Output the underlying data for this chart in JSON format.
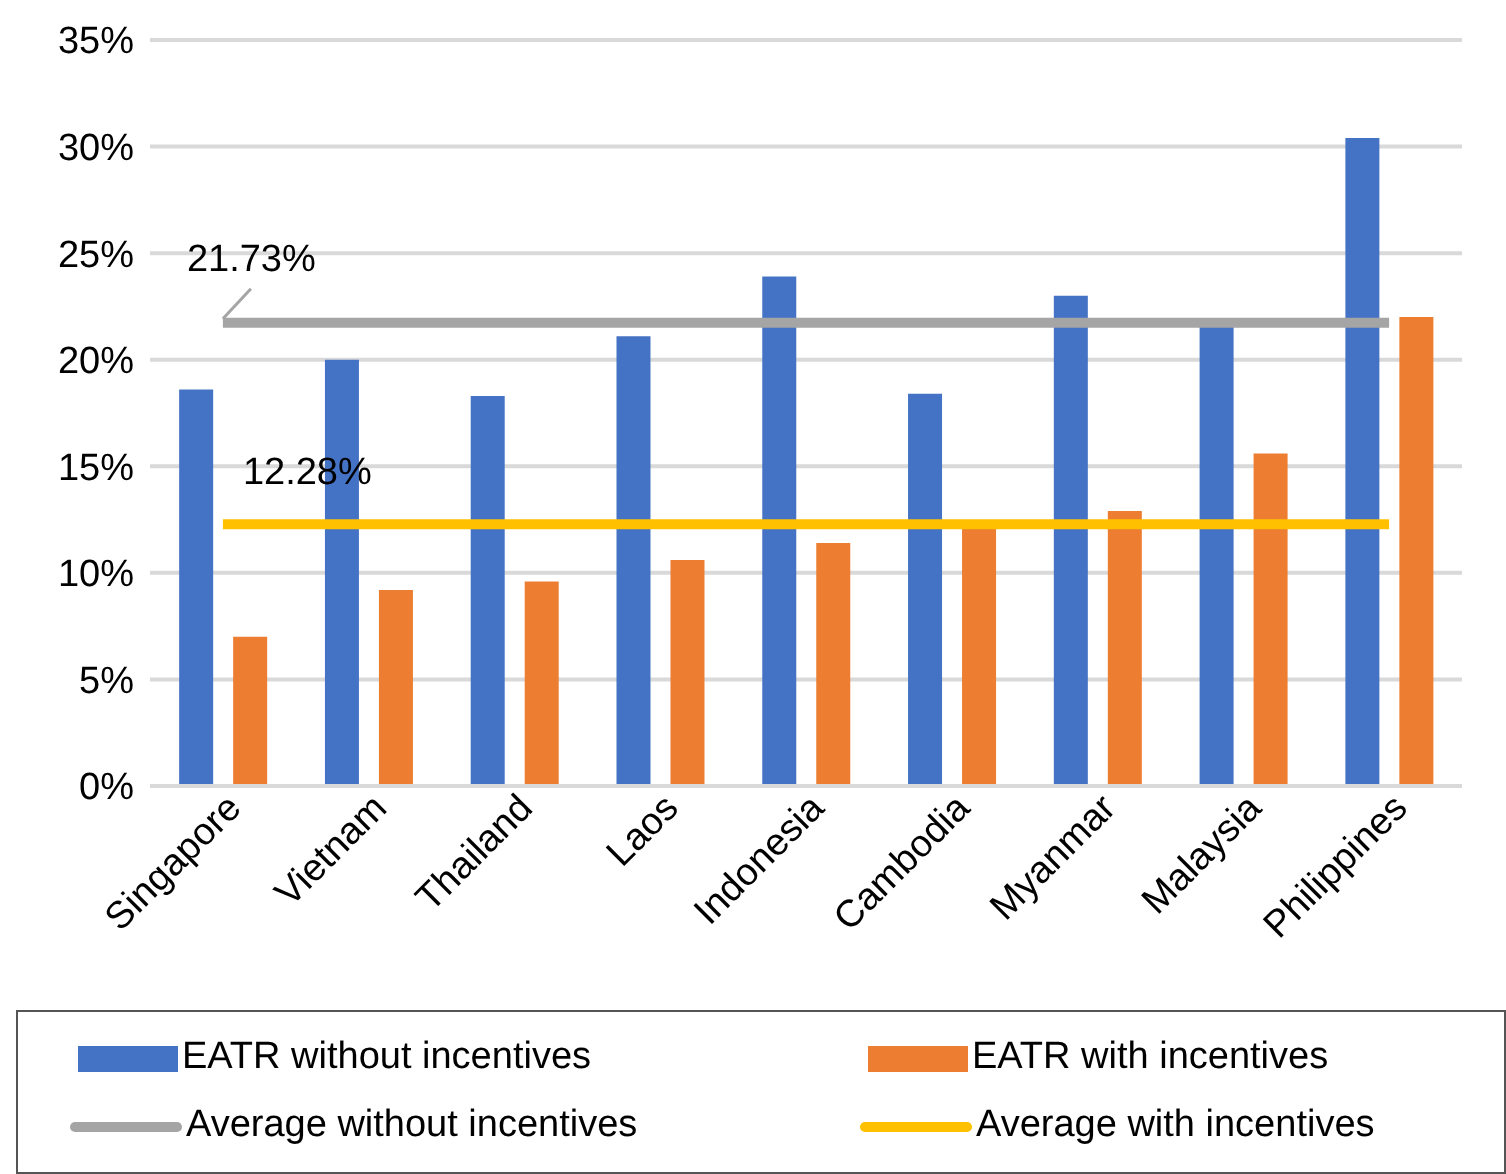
{
  "chart_data": {
    "type": "bar",
    "categories": [
      "Singapore",
      "Vietnam",
      "Thailand",
      "Laos",
      "Indonesia",
      "Cambodia",
      "Myanmar",
      "Malaysia",
      "Philippines"
    ],
    "series": [
      {
        "name": "EATR without incentives",
        "color": "#4472c4",
        "values": [
          18.6,
          20.0,
          18.3,
          21.1,
          23.9,
          18.4,
          23.0,
          21.6,
          30.4
        ]
      },
      {
        "name": "EATR with incentives",
        "color": "#ed7d31",
        "values": [
          7.0,
          9.2,
          9.6,
          10.6,
          11.4,
          12.2,
          12.9,
          15.6,
          22.0
        ]
      },
      {
        "name": "Average without incentives",
        "type": "line",
        "color": "#a5a5a5",
        "values": [
          21.73,
          21.73,
          21.73,
          21.73,
          21.73,
          21.73,
          21.73,
          21.73,
          21.73
        ]
      },
      {
        "name": "Average with incentives",
        "type": "line",
        "color": "#ffc000",
        "values": [
          12.28,
          12.28,
          12.28,
          12.28,
          12.28,
          12.28,
          12.28,
          12.28,
          12.28
        ]
      }
    ],
    "annotations": [
      {
        "text": "21.73%",
        "x": "Singapore",
        "y": 21.73
      },
      {
        "text": "12.28%",
        "x": "Singapore",
        "y": 12.28
      }
    ],
    "ylim": [
      0,
      35
    ],
    "yticks": [
      {
        "value": 0,
        "label": "0%"
      },
      {
        "value": 5,
        "label": "5%"
      },
      {
        "value": 10,
        "label": "10%"
      },
      {
        "value": 15,
        "label": "15%"
      },
      {
        "value": 20,
        "label": "20%"
      },
      {
        "value": 25,
        "label": "25%"
      },
      {
        "value": 30,
        "label": "30%"
      },
      {
        "value": 35,
        "label": "35%"
      }
    ],
    "grid": "y",
    "legend": "bottom",
    "marker": "none"
  }
}
